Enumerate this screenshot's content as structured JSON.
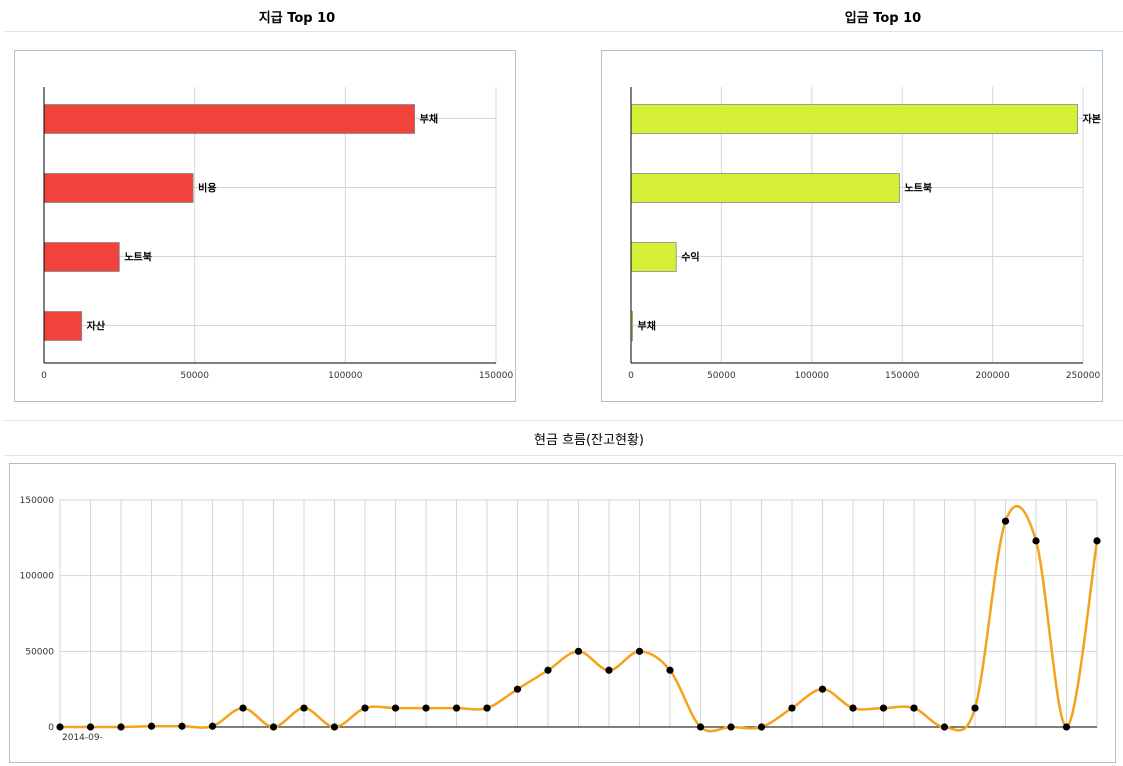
{
  "titles": {
    "expense": "지급 Top 10",
    "income": "입금 Top 10",
    "cashflow": "현금 흐름(잔고현황)"
  },
  "colors": {
    "expense_bar": "#ef433b",
    "income_bar": "#d4ef36",
    "cashflow_line": "#f5a21c",
    "point": "#000000",
    "grid": "#d6d6d6",
    "panel_border": "#a9c1d3"
  },
  "chart_data": [
    {
      "type": "bar",
      "orientation": "horizontal",
      "categories": [
        "부채",
        "비용",
        "노트북",
        "자산"
      ],
      "values": [
        123000,
        49500,
        25000,
        12500
      ],
      "xlim": [
        0,
        150000
      ],
      "xticks": [
        0,
        50000,
        100000,
        150000
      ],
      "grid": true
    },
    {
      "type": "bar",
      "orientation": "horizontal",
      "categories": [
        "자본",
        "노트북",
        "수익",
        "부채"
      ],
      "values": [
        247000,
        148500,
        25000,
        500
      ],
      "xlim": [
        0,
        250000
      ],
      "xticks": [
        0,
        50000,
        100000,
        150000,
        200000,
        250000
      ],
      "grid": true
    },
    {
      "type": "line",
      "smooth": true,
      "ylim": [
        0,
        150000
      ],
      "yticks": [
        0,
        50000,
        100000,
        150000
      ],
      "grid": true,
      "values": [
        0,
        0,
        0,
        500,
        500,
        500,
        12500,
        0,
        12500,
        0,
        12500,
        12500,
        12500,
        12500,
        12500,
        25000,
        37500,
        50000,
        37500,
        50000,
        37500,
        0,
        0,
        0,
        12500,
        25000,
        12500,
        12500,
        12500,
        0,
        12500,
        136000,
        123000,
        0,
        123000
      ],
      "first_x_label": "2014-09-"
    }
  ]
}
